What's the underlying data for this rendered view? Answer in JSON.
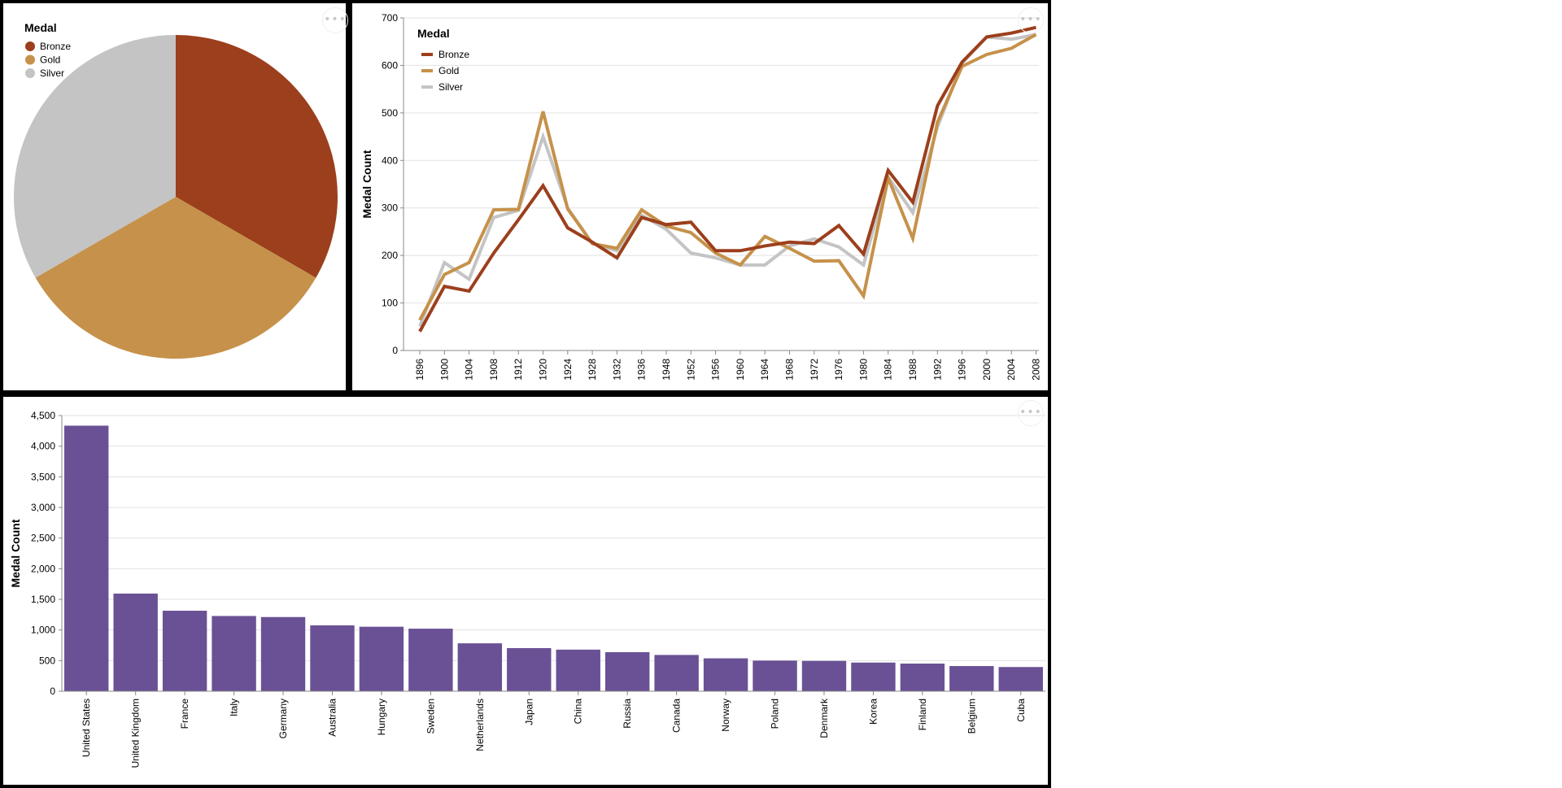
{
  "colors": {
    "Bronze": "#9c3f1c",
    "Gold": "#c6914a",
    "Silver": "#c4c4c4",
    "bar": "#6a5195",
    "grid": "#e2e2e2",
    "axis": "#888888"
  },
  "menu_icon": "more-horizontal-icon",
  "chart_data": [
    {
      "type": "pie",
      "legend": {
        "title": "Medal",
        "placement": "top-left",
        "items": [
          "Bronze",
          "Gold",
          "Silver"
        ]
      },
      "slices": [
        {
          "label": "Bronze",
          "value": 33.34
        },
        {
          "label": "Gold",
          "value": 33.33
        },
        {
          "label": "Silver",
          "value": 33.33
        }
      ]
    },
    {
      "type": "line",
      "ylabel": "Medal Count",
      "ylim": [
        0,
        700
      ],
      "yticks": [
        0,
        100,
        200,
        300,
        400,
        500,
        600,
        700
      ],
      "grid": true,
      "legend": {
        "title": "Medal",
        "placement": "top-left",
        "items": [
          "Bronze",
          "Gold",
          "Silver"
        ]
      },
      "x": [
        "1896",
        "1900",
        "1904",
        "1908",
        "1912",
        "1920",
        "1924",
        "1928",
        "1932",
        "1936",
        "1948",
        "1952",
        "1956",
        "1960",
        "1964",
        "1968",
        "1972",
        "1976",
        "1980",
        "1984",
        "1988",
        "1992",
        "1996",
        "2000",
        "2004",
        "2008"
      ],
      "series": [
        {
          "name": "Bronze",
          "values": [
            40,
            135,
            125,
            205,
            275,
            347,
            258,
            228,
            195,
            280,
            265,
            270,
            210,
            210,
            220,
            228,
            225,
            263,
            203,
            379,
            312,
            515,
            607,
            660,
            668,
            680
          ]
        },
        {
          "name": "Gold",
          "values": [
            64,
            160,
            185,
            296,
            297,
            503,
            298,
            225,
            215,
            296,
            262,
            248,
            205,
            180,
            240,
            215,
            188,
            189,
            115,
            363,
            236,
            480,
            598,
            623,
            636,
            665
          ]
        },
        {
          "name": "Silver",
          "values": [
            51,
            185,
            150,
            280,
            295,
            450,
            300,
            225,
            210,
            285,
            255,
            205,
            195,
            180,
            180,
            220,
            235,
            218,
            180,
            365,
            290,
            470,
            605,
            660,
            655,
            665
          ]
        }
      ]
    },
    {
      "type": "bar",
      "ylabel": "Medal Count",
      "ylim": [
        0,
        4500
      ],
      "yticks": [
        "0",
        "500",
        "1,000",
        "1,500",
        "2,000",
        "2,500",
        "3,000",
        "3,500",
        "4,000",
        "4,500"
      ],
      "grid": true,
      "categories": [
        "United States",
        "United Kingdom",
        "France",
        "Italy",
        "Germany",
        "Australia",
        "Hungary",
        "Sweden",
        "Netherlands",
        "Japan",
        "China",
        "Russia",
        "Canada",
        "Norway",
        "Poland",
        "Denmark",
        "Korea",
        "Finland",
        "Belgium",
        "Cuba"
      ],
      "values": [
        4335,
        1594,
        1314,
        1228,
        1211,
        1075,
        1053,
        1021,
        782,
        704,
        679,
        638,
        592,
        537,
        500,
        495,
        468,
        451,
        411,
        395
      ]
    }
  ]
}
